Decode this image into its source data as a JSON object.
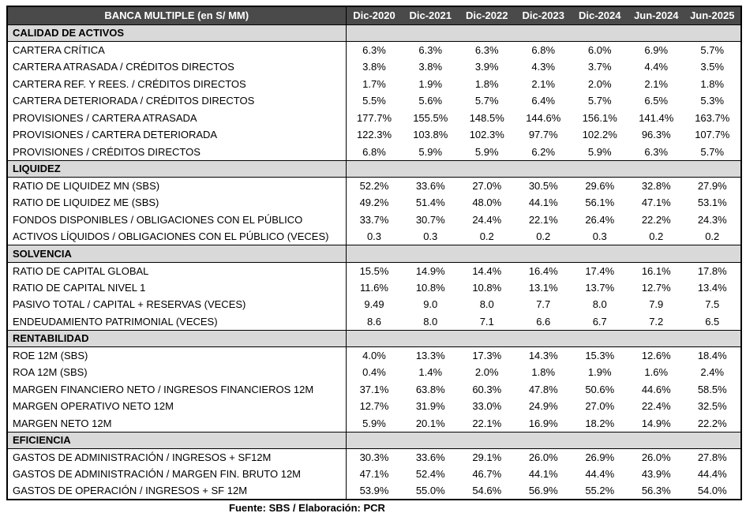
{
  "table": {
    "title": "BANCA MULTIPLE (en S/ MM)",
    "columns": [
      "Dic-2020",
      "Dic-2021",
      "Dic-2022",
      "Dic-2023",
      "Dic-2024",
      "Jun-2024",
      "Jun-2025"
    ],
    "sections": [
      {
        "name": "CALIDAD DE ACTIVOS",
        "rows": [
          {
            "label": "CARTERA CRÍTICA",
            "values": [
              "6.3%",
              "6.3%",
              "6.3%",
              "6.8%",
              "6.0%",
              "6.9%",
              "5.7%"
            ]
          },
          {
            "label": "CARTERA ATRASADA / CRÉDITOS DIRECTOS",
            "values": [
              "3.8%",
              "3.8%",
              "3.9%",
              "4.3%",
              "3.7%",
              "4.4%",
              "3.5%"
            ]
          },
          {
            "label": "CARTERA REF. Y REES. / CRÉDITOS DIRECTOS",
            "values": [
              "1.7%",
              "1.9%",
              "1.8%",
              "2.1%",
              "2.0%",
              "2.1%",
              "1.8%"
            ]
          },
          {
            "label": "CARTERA DETERIORADA / CRÉDITOS DIRECTOS",
            "values": [
              "5.5%",
              "5.6%",
              "5.7%",
              "6.4%",
              "5.7%",
              "6.5%",
              "5.3%"
            ]
          },
          {
            "label": "PROVISIONES / CARTERA ATRASADA",
            "values": [
              "177.7%",
              "155.5%",
              "148.5%",
              "144.6%",
              "156.1%",
              "141.4%",
              "163.7%"
            ]
          },
          {
            "label": "PROVISIONES / CARTERA DETERIORADA",
            "values": [
              "122.3%",
              "103.8%",
              "102.3%",
              "97.7%",
              "102.2%",
              "96.3%",
              "107.7%"
            ]
          },
          {
            "label": "PROVISIONES / CRÉDITOS DIRECTOS",
            "values": [
              "6.8%",
              "5.9%",
              "5.9%",
              "6.2%",
              "5.9%",
              "6.3%",
              "5.7%"
            ]
          }
        ]
      },
      {
        "name": "LIQUIDEZ",
        "rows": [
          {
            "label": "RATIO DE LIQUIDEZ MN (SBS)",
            "values": [
              "52.2%",
              "33.6%",
              "27.0%",
              "30.5%",
              "29.6%",
              "32.8%",
              "27.9%"
            ]
          },
          {
            "label": "RATIO DE LIQUIDEZ ME (SBS)",
            "values": [
              "49.2%",
              "51.4%",
              "48.0%",
              "44.1%",
              "56.1%",
              "47.1%",
              "53.1%"
            ]
          },
          {
            "label": "FONDOS DISPONIBLES / OBLIGACIONES CON EL PÚBLICO",
            "values": [
              "33.7%",
              "30.7%",
              "24.4%",
              "22.1%",
              "26.4%",
              "22.2%",
              "24.3%"
            ]
          },
          {
            "label": "ACTIVOS LÍQUIDOS / OBLIGACIONES CON EL PÚBLICO (VECES)",
            "values": [
              "0.3",
              "0.3",
              "0.2",
              "0.2",
              "0.3",
              "0.2",
              "0.2"
            ]
          }
        ]
      },
      {
        "name": "SOLVENCIA",
        "rows": [
          {
            "label": "RATIO DE CAPITAL GLOBAL",
            "values": [
              "15.5%",
              "14.9%",
              "14.4%",
              "16.4%",
              "17.4%",
              "16.1%",
              "17.8%"
            ]
          },
          {
            "label": "RATIO DE CAPITAL NIVEL 1",
            "values": [
              "11.6%",
              "10.8%",
              "10.8%",
              "13.1%",
              "13.7%",
              "12.7%",
              "13.4%"
            ]
          },
          {
            "label": "PASIVO TOTAL / CAPITAL + RESERVAS (VECES)",
            "values": [
              "9.49",
              "9.0",
              "8.0",
              "7.7",
              "8.0",
              "7.9",
              "7.5"
            ]
          },
          {
            "label": "ENDEUDAMIENTO PATRIMONIAL (VECES)",
            "values": [
              "8.6",
              "8.0",
              "7.1",
              "6.6",
              "6.7",
              "7.2",
              "6.5"
            ]
          }
        ]
      },
      {
        "name": "RENTABILIDAD",
        "rows": [
          {
            "label": "ROE 12M (SBS)",
            "values": [
              "4.0%",
              "13.3%",
              "17.3%",
              "14.3%",
              "15.3%",
              "12.6%",
              "18.4%"
            ]
          },
          {
            "label": "ROA 12M (SBS)",
            "values": [
              "0.4%",
              "1.4%",
              "2.0%",
              "1.8%",
              "1.9%",
              "1.6%",
              "2.4%"
            ]
          },
          {
            "label": "MARGEN FINANCIERO NETO / INGRESOS FINANCIEROS 12M",
            "values": [
              "37.1%",
              "63.8%",
              "60.3%",
              "47.8%",
              "50.6%",
              "44.6%",
              "58.5%"
            ]
          },
          {
            "label": "MARGEN OPERATIVO NETO 12M",
            "values": [
              "12.7%",
              "31.9%",
              "33.0%",
              "24.9%",
              "27.0%",
              "22.4%",
              "32.5%"
            ]
          },
          {
            "label": "MARGEN NETO 12M",
            "values": [
              "5.9%",
              "20.1%",
              "22.1%",
              "16.9%",
              "18.2%",
              "14.9%",
              "22.2%"
            ]
          }
        ]
      },
      {
        "name": "EFICIENCIA",
        "rows": [
          {
            "label": "GASTOS DE ADMINISTRACIÓN / INGRESOS + SF12M",
            "values": [
              "30.3%",
              "33.6%",
              "29.1%",
              "26.0%",
              "26.9%",
              "26.0%",
              "27.8%"
            ]
          },
          {
            "label": "GASTOS DE ADMINISTRACIÓN / MARGEN FIN. BRUTO 12M",
            "values": [
              "47.1%",
              "52.4%",
              "46.7%",
              "44.1%",
              "44.4%",
              "43.9%",
              "44.4%"
            ]
          },
          {
            "label": "GASTOS DE OPERACIÓN / INGRESOS + SF 12M",
            "values": [
              "53.9%",
              "55.0%",
              "54.6%",
              "56.9%",
              "55.2%",
              "56.3%",
              "54.0%"
            ]
          }
        ]
      }
    ]
  },
  "footer": "Fuente: SBS / Elaboración: PCR",
  "colors": {
    "header_bg": "#4A4A4A",
    "header_text": "#FFFFFF",
    "section_bg": "#D9D9D9",
    "border": "#000000",
    "text": "#000000",
    "page_bg": "#FFFFFF"
  }
}
